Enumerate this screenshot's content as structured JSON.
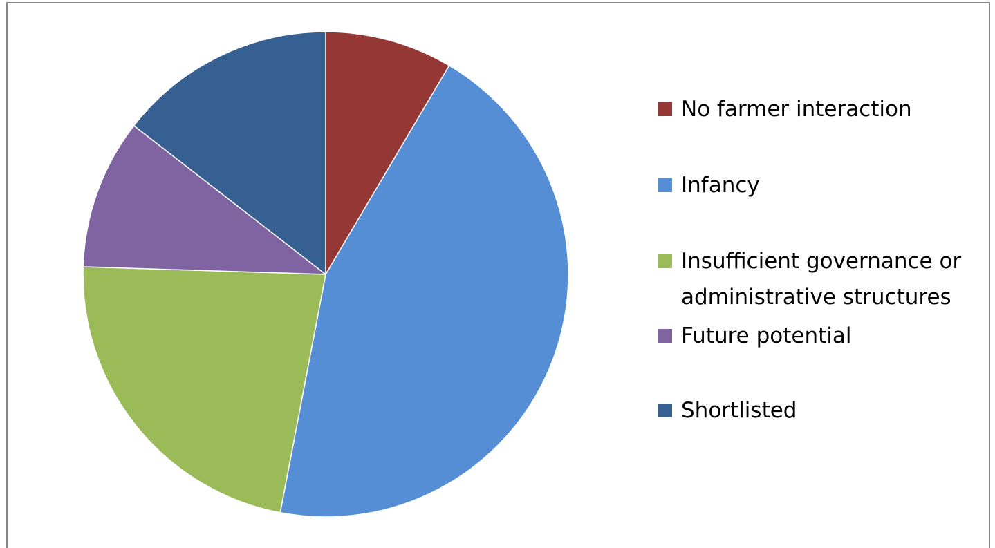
{
  "chart_data": {
    "type": "pie",
    "title": "",
    "slices": [
      {
        "label": "No farmer interaction",
        "value": 8.5,
        "color": "#953735"
      },
      {
        "label": "Infancy",
        "value": 44.5,
        "color": "#558ED5"
      },
      {
        "label": "Insufficient governance or administrative structures",
        "value": 22.5,
        "color": "#9BBB59"
      },
      {
        "label": "Future potential",
        "value": 10,
        "color": "#8064A2"
      },
      {
        "label": "Shortlisted",
        "value": 14.5,
        "color": "#376092"
      }
    ],
    "legend_position": "right",
    "start_angle": "12 o'clock",
    "direction": "clockwise"
  },
  "legend": {
    "items": [
      {
        "label": "No farmer interaction",
        "color": "#953735"
      },
      {
        "label": "Infancy",
        "color": "#558ED5"
      },
      {
        "label": "Insufficient governance or\nadministrative structures",
        "color": "#9BBB59"
      },
      {
        "label": "Future potential",
        "color": "#8064A2"
      },
      {
        "label": "Shortlisted",
        "color": "#376092"
      }
    ]
  }
}
